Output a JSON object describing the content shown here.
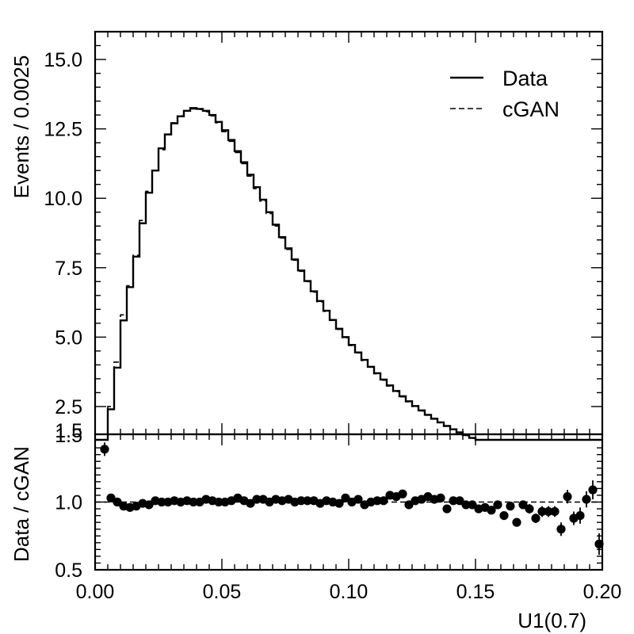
{
  "chart_data": [
    {
      "type": "line",
      "ylabel": "Events / 0.0025",
      "xlim": [
        0.0,
        0.2
      ],
      "ylim": [
        1.5,
        16.0
      ],
      "yticks": [
        "15.0",
        "12.5",
        "10.0",
        "7.5",
        "5.0",
        "2.5",
        "1.5"
      ],
      "bin_width": 0.0025,
      "legend_position": "top-right",
      "series": [
        {
          "name": "Data",
          "style": "solid",
          "values": [
            0.9,
            1.2,
            2.4,
            3.9,
            5.6,
            6.8,
            7.9,
            9.1,
            10.2,
            11.0,
            11.8,
            12.3,
            12.7,
            12.95,
            13.15,
            13.25,
            13.22,
            13.15,
            13.0,
            12.75,
            12.45,
            12.1,
            11.7,
            11.3,
            10.85,
            10.4,
            9.95,
            9.5,
            9.05,
            8.6,
            8.2,
            7.8,
            7.4,
            7.02,
            6.65,
            6.3,
            5.95,
            5.62,
            5.3,
            5.0,
            4.72,
            4.45,
            4.18,
            3.93,
            3.7,
            3.47,
            3.26,
            3.06,
            2.87,
            2.69,
            2.52,
            2.36,
            2.2,
            2.06,
            1.93,
            1.8,
            1.68,
            1.57,
            1.47,
            1.37,
            1.28,
            1.2,
            1.12,
            1.05,
            0.98,
            0.91,
            0.85,
            0.79,
            0.74,
            0.69,
            0.64,
            0.6,
            0.56,
            0.52,
            0.49,
            0.46,
            0.43,
            0.4,
            0.37,
            0.35
          ]
        },
        {
          "name": "cGAN",
          "style": "dashed",
          "values": [
            0.7,
            1.16,
            2.5,
            4.1,
            5.8,
            6.85,
            7.95,
            9.2,
            10.25,
            11.0,
            11.75,
            12.3,
            12.72,
            12.97,
            13.14,
            13.22,
            13.2,
            13.12,
            12.97,
            12.72,
            12.4,
            12.05,
            11.65,
            11.25,
            10.8,
            10.35,
            9.9,
            9.45,
            9.0,
            8.57,
            8.16,
            7.77,
            7.37,
            7.0,
            6.62,
            6.27,
            5.93,
            5.6,
            5.28,
            4.98,
            4.7,
            4.43,
            4.16,
            3.92,
            3.68,
            3.45,
            3.24,
            3.04,
            2.85,
            2.67,
            2.5,
            2.34,
            2.19,
            2.05,
            1.92,
            1.79,
            1.67,
            1.56,
            1.46,
            1.36,
            1.27,
            1.19,
            1.11,
            1.04,
            0.97,
            0.9,
            0.84,
            0.78,
            0.73,
            0.68,
            0.63,
            0.59,
            0.55,
            0.51,
            0.48,
            0.45,
            0.42,
            0.39,
            0.36,
            0.34
          ]
        }
      ]
    },
    {
      "type": "scatter",
      "xlabel": "U1(0.7)",
      "ylabel": "Data / cGAN",
      "xlim": [
        0.0,
        0.2
      ],
      "ylim": [
        0.5,
        1.5
      ],
      "xticks": [
        "0.00",
        "0.05",
        "0.10",
        "0.15",
        "0.20"
      ],
      "yticks": [
        "1.5",
        "1.0",
        "0.5"
      ],
      "reference_line": 1.0,
      "x": [
        0.00375,
        0.00625,
        0.00875,
        0.01125,
        0.01375,
        0.01625,
        0.01875,
        0.02125,
        0.02375,
        0.02625,
        0.02875,
        0.03125,
        0.03375,
        0.03625,
        0.03875,
        0.04125,
        0.04375,
        0.04625,
        0.04875,
        0.05125,
        0.05375,
        0.05625,
        0.05875,
        0.06125,
        0.06375,
        0.06625,
        0.06875,
        0.07125,
        0.07375,
        0.07625,
        0.07875,
        0.08125,
        0.08375,
        0.08625,
        0.08875,
        0.09125,
        0.09375,
        0.09625,
        0.09875,
        0.10125,
        0.10375,
        0.10625,
        0.10875,
        0.11125,
        0.11375,
        0.11625,
        0.11875,
        0.12125,
        0.12375,
        0.12625,
        0.12875,
        0.13125,
        0.13375,
        0.13625,
        0.13875,
        0.14125,
        0.14375,
        0.14625,
        0.14875,
        0.15125,
        0.15375,
        0.15625,
        0.15875,
        0.16125,
        0.16375,
        0.16625,
        0.16875,
        0.17125,
        0.17375,
        0.17625,
        0.17875,
        0.18125,
        0.18375,
        0.18625,
        0.18875,
        0.19125,
        0.19375,
        0.19625,
        0.19875
      ],
      "y": [
        1.39,
        1.03,
        1.0,
        0.97,
        0.96,
        0.97,
        0.99,
        0.98,
        1.01,
        1.0,
        1.0,
        1.01,
        1.0,
        1.01,
        1.0,
        1.0,
        1.02,
        1.01,
        1.0,
        1.0,
        1.01,
        1.03,
        1.01,
        0.99,
        1.02,
        1.02,
        1.0,
        1.02,
        1.01,
        1.02,
        1.0,
        1.01,
        1.01,
        1.01,
        0.99,
        1.01,
        1.0,
        0.99,
        1.03,
        1.0,
        1.02,
        0.98,
        1.0,
        1.01,
        1.01,
        1.05,
        1.04,
        1.06,
        0.98,
        1.01,
        1.02,
        1.04,
        1.02,
        1.03,
        0.95,
        1.01,
        1.01,
        0.98,
        0.98,
        0.95,
        0.96,
        0.94,
        0.98,
        0.9,
        0.97,
        0.85,
        0.98,
        0.95,
        0.88,
        0.93,
        0.93,
        0.93,
        0.8,
        1.04,
        0.88,
        0.9,
        1.02,
        1.09,
        0.69
      ],
      "err": [
        0.05,
        0.02,
        0.02,
        0.01,
        0.01,
        0.01,
        0.01,
        0.01,
        0.01,
        0.01,
        0.01,
        0.01,
        0.01,
        0.01,
        0.01,
        0.01,
        0.01,
        0.01,
        0.01,
        0.01,
        0.01,
        0.01,
        0.01,
        0.01,
        0.01,
        0.01,
        0.01,
        0.01,
        0.01,
        0.01,
        0.01,
        0.01,
        0.01,
        0.01,
        0.01,
        0.01,
        0.01,
        0.01,
        0.01,
        0.01,
        0.01,
        0.01,
        0.01,
        0.01,
        0.01,
        0.01,
        0.01,
        0.01,
        0.01,
        0.01,
        0.01,
        0.01,
        0.01,
        0.01,
        0.01,
        0.015,
        0.015,
        0.02,
        0.02,
        0.02,
        0.02,
        0.025,
        0.025,
        0.03,
        0.03,
        0.03,
        0.03,
        0.035,
        0.035,
        0.04,
        0.04,
        0.04,
        0.05,
        0.05,
        0.05,
        0.06,
        0.06,
        0.07,
        0.08
      ]
    }
  ]
}
